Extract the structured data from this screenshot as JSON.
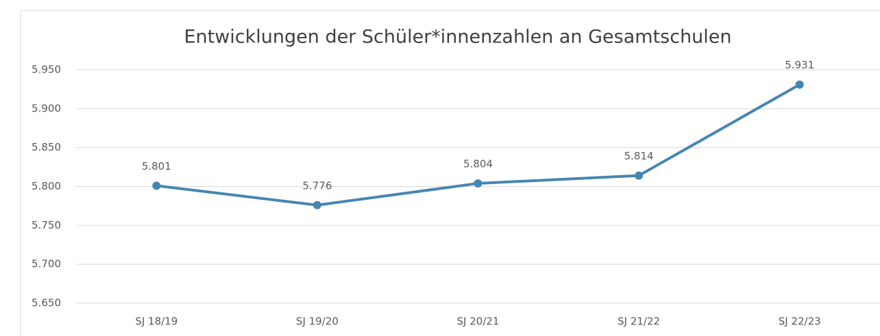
{
  "chart_data": {
    "type": "line",
    "title": "Entwicklungen der Schüler*innenzahlen an Gesamtschulen",
    "categories": [
      "SJ 18/19",
      "SJ 19/20",
      "SJ 20/21",
      "SJ 21/22",
      "SJ 22/23"
    ],
    "values": [
      5801,
      5776,
      5804,
      5814,
      5931
    ],
    "value_labels": [
      "5.801",
      "5.776",
      "5.804",
      "5.814",
      "5.931"
    ],
    "color": "#4586b1",
    "ylim": [
      5650,
      5950
    ],
    "yticks": [
      {
        "value": 5650,
        "label": "5.650"
      },
      {
        "value": 5700,
        "label": "5.700"
      },
      {
        "value": 5750,
        "label": "5.750"
      },
      {
        "value": 5800,
        "label": "5.800"
      },
      {
        "value": 5850,
        "label": "5.850"
      },
      {
        "value": 5900,
        "label": "5.900"
      },
      {
        "value": 5950,
        "label": "5.950"
      }
    ],
    "grid": true
  }
}
